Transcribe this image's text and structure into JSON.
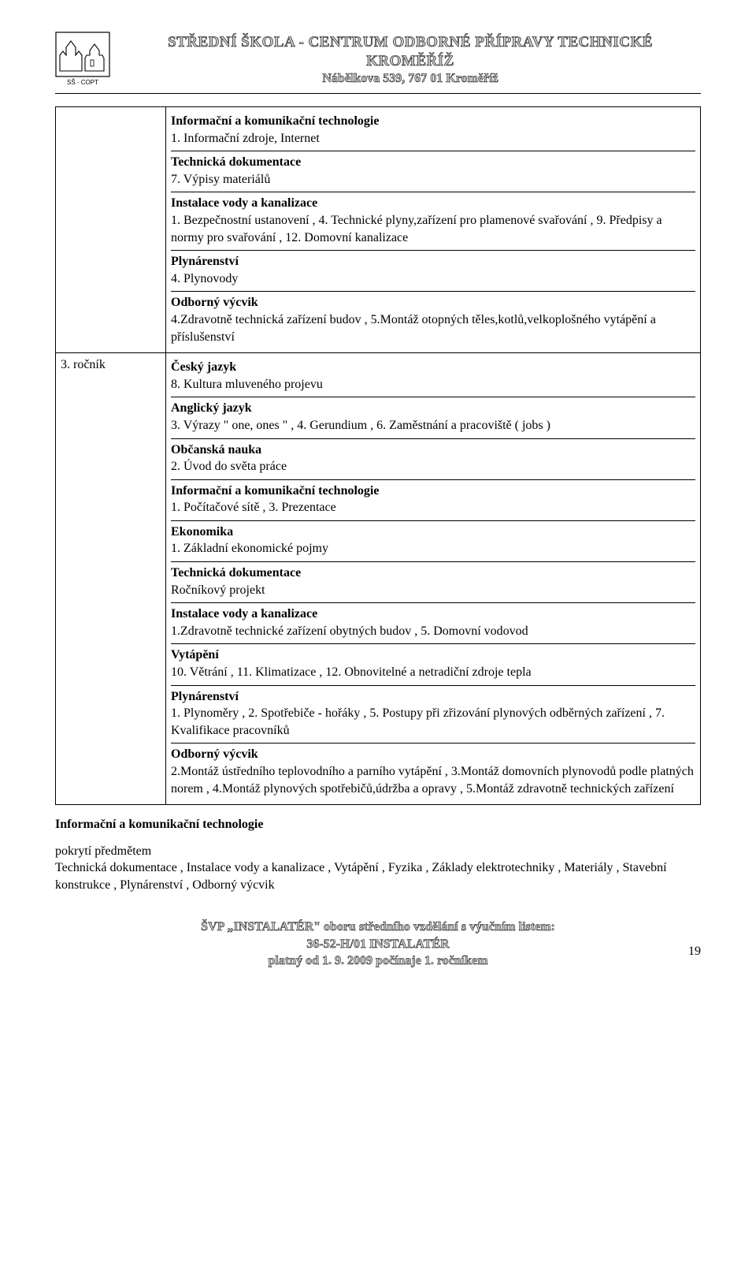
{
  "header": {
    "logo_caption": "SŠ - COPT",
    "title_line1": "STŘEDNÍ ŠKOLA - CENTRUM ODBORNÉ PŘÍPRAVY TECHNICKÉ",
    "title_line2": "KROMĚŘÍŽ",
    "address": "Nábělkova 539, 767 01 Kroměříž"
  },
  "table": {
    "row1": {
      "left": "",
      "blocks": [
        {
          "title": "Informační a komunikační technologie",
          "text": "1. Informační zdroje, Internet"
        },
        {
          "title": "Technická dokumentace",
          "text": "7. Výpisy materiálů"
        },
        {
          "title": "Instalace vody a kanalizace",
          "text": "1. Bezpečnostní ustanovení , 4. Technické plyny,zařízení pro plamenové svařování , 9. Předpisy a normy pro svařování , 12. Domovní kanalizace"
        },
        {
          "title": "Plynárenství",
          "text": "4. Plynovody"
        },
        {
          "title": "Odborný výcvik",
          "text": "4.Zdravotně technická zařízení budov , 5.Montáž otopných těles,kotlů,velkoplošného vytápění a příslušenství"
        }
      ]
    },
    "row2": {
      "left": "3. ročník",
      "blocks": [
        {
          "title": "Český jazyk",
          "text": "8. Kultura mluveného projevu"
        },
        {
          "title": "Anglický jazyk",
          "text": "3. Výrazy \" one, ones \" , 4. Gerundium , 6. Zaměstnání a pracoviště ( jobs )"
        },
        {
          "title": "Občanská nauka",
          "text": "2. Úvod do světa práce"
        },
        {
          "title": "Informační a komunikační technologie",
          "text": "1. Počítačové sítě , 3. Prezentace"
        },
        {
          "title": "Ekonomika",
          "text": "1. Základní ekonomické pojmy"
        },
        {
          "title": "Technická dokumentace",
          "text": "Ročníkový projekt"
        },
        {
          "title": "Instalace vody a kanalizace",
          "text": "1.Zdravotně technické zařízení obytných budov , 5. Domovní vodovod"
        },
        {
          "title": "Vytápění",
          "text": "10. Větrání , 11. Klimatizace , 12. Obnovitelné a netradiční zdroje tepla"
        },
        {
          "title": "Plynárenství",
          "text": "1. Plynoměry , 2. Spotřebiče - hořáky , 5. Postupy při zřizování plynových odběrných zařízení , 7. Kvalifikace pracovníků"
        },
        {
          "title": "Odborný výcvik",
          "text": "2.Montáž ústředního teplovodního a parního vytápění , 3.Montáž domovních plynovodů podle platných norem , 4.Montáž plynových spotřebičů,údržba a opravy , 5.Montáž zdravotně technických zařízení"
        }
      ]
    }
  },
  "below": {
    "heading": "Informační a komunikační technologie",
    "sub": "pokrytí předmětem",
    "coverage": "Technická dokumentace , Instalace vody a kanalizace , Vytápění , Fyzika , Základy elektrotechniky , Materiály , Stavební konstrukce , Plynárenství , Odborný výcvik"
  },
  "footer": {
    "line1": "ŠVP „INSTALATÉR\" oboru středního vzdělání s výučním listem:",
    "line2": "36-52-H/01 INSTALATÉR",
    "line3": "platný od 1. 9. 2009 počínaje 1. ročníkem",
    "page": "19"
  }
}
